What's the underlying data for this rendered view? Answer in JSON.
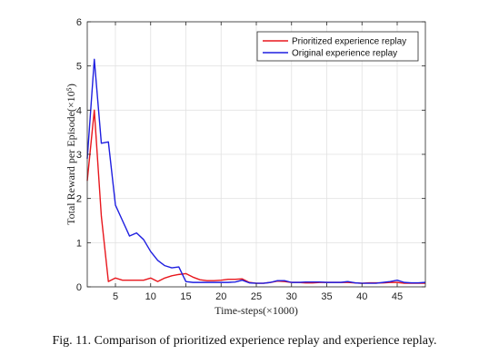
{
  "caption": "Fig. 11.   Comparison of prioritized experience replay and experience replay.",
  "chart_data": {
    "type": "line",
    "title": "",
    "xlabel": "Time-steps(×1000)",
    "ylabel": "Total Reward per Episode(×10⁵)",
    "xlim": [
      1,
      49
    ],
    "ylim": [
      0,
      6
    ],
    "xticks": [
      5,
      10,
      15,
      20,
      25,
      30,
      35,
      40,
      45
    ],
    "yticks": [
      0,
      1,
      2,
      3,
      4,
      5,
      6
    ],
    "grid": true,
    "legend_position": "top-right",
    "series": [
      {
        "name": "Prioritized experience replay",
        "color": "#e8171d",
        "x": [
          1,
          2,
          3,
          4,
          5,
          6,
          7,
          8,
          9,
          10,
          11,
          12,
          13,
          14,
          15,
          16,
          17,
          18,
          19,
          20,
          21,
          22,
          23,
          24,
          25,
          26,
          27,
          28,
          29,
          30,
          31,
          32,
          33,
          34,
          35,
          36,
          37,
          38,
          39,
          40,
          41,
          42,
          43,
          44,
          45,
          46,
          47,
          48,
          49
        ],
        "values": [
          2.4,
          4.0,
          1.6,
          0.12,
          0.2,
          0.15,
          0.15,
          0.15,
          0.15,
          0.2,
          0.12,
          0.2,
          0.25,
          0.28,
          0.3,
          0.22,
          0.16,
          0.14,
          0.14,
          0.15,
          0.17,
          0.17,
          0.18,
          0.1,
          0.08,
          0.08,
          0.1,
          0.13,
          0.12,
          0.1,
          0.1,
          0.09,
          0.09,
          0.1,
          0.1,
          0.1,
          0.1,
          0.1,
          0.09,
          0.08,
          0.09,
          0.09,
          0.09,
          0.1,
          0.1,
          0.08,
          0.08,
          0.08,
          0.08
        ]
      },
      {
        "name": "Original experience replay",
        "color": "#1f1fe0",
        "x": [
          1,
          2,
          3,
          4,
          5,
          6,
          7,
          8,
          9,
          10,
          11,
          12,
          13,
          14,
          15,
          16,
          17,
          18,
          19,
          20,
          21,
          22,
          23,
          24,
          25,
          26,
          27,
          28,
          29,
          30,
          31,
          32,
          33,
          34,
          35,
          36,
          37,
          38,
          39,
          40,
          41,
          42,
          43,
          44,
          45,
          46,
          47,
          48,
          49
        ],
        "values": [
          2.9,
          5.15,
          3.25,
          3.28,
          1.85,
          1.5,
          1.15,
          1.22,
          1.07,
          0.8,
          0.6,
          0.48,
          0.43,
          0.45,
          0.12,
          0.1,
          0.1,
          0.1,
          0.1,
          0.1,
          0.1,
          0.11,
          0.15,
          0.09,
          0.08,
          0.08,
          0.1,
          0.14,
          0.14,
          0.1,
          0.1,
          0.11,
          0.11,
          0.11,
          0.1,
          0.1,
          0.1,
          0.12,
          0.09,
          0.08,
          0.08,
          0.08,
          0.1,
          0.12,
          0.15,
          0.1,
          0.09,
          0.09,
          0.1
        ]
      }
    ]
  }
}
